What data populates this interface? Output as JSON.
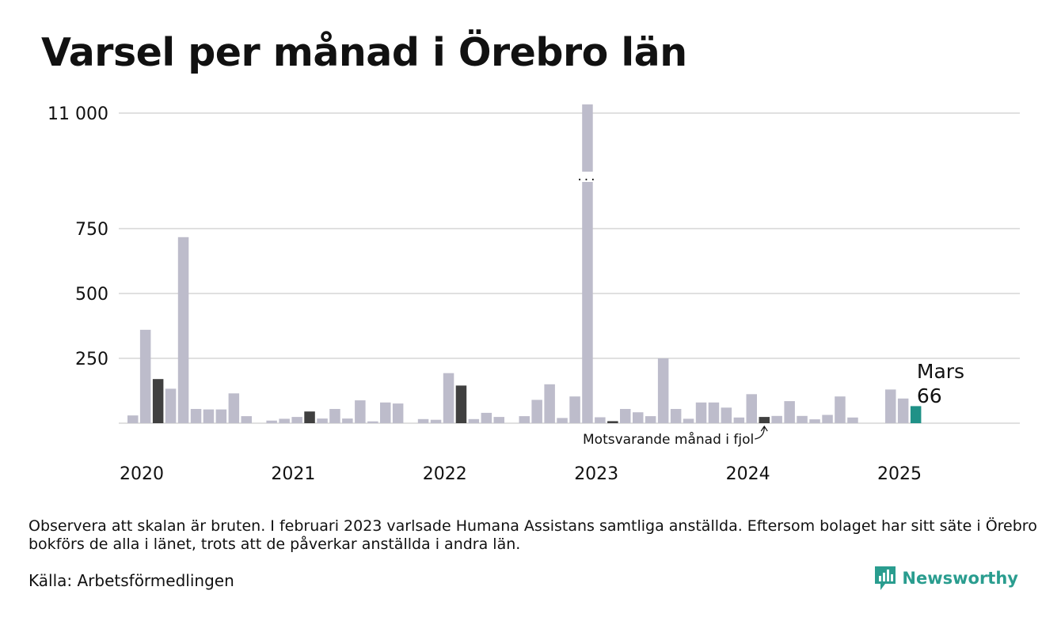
{
  "title": "Varsel per månad i Örebro län",
  "note": "Observera att skalan är bruten. I februari 2023 varlsade Humana Assistans samtliga anställda. Eftersom bolaget har sitt säte i Örebro bokförs de alla i länet, trots att de påverkar anställda i andra län.",
  "source": "Källa: Arbetsförmedlingen",
  "brand": {
    "name": "Newsworthy",
    "icon": "newsworthy-logo-icon"
  },
  "colors": {
    "bar": "#bdbccb",
    "highlight": "#404040",
    "current": "#1f9187",
    "grid": "#e0e0e0",
    "brand": "#2a9d8f"
  },
  "chart_data": {
    "type": "bar",
    "title": "Varsel per månad i Örebro län",
    "broken_axis": true,
    "y_ticks": [
      "250",
      "500",
      "750",
      "11 000"
    ],
    "y_tick_values": [
      250,
      500,
      750,
      11000
    ],
    "x_tick_labels": [
      "2020",
      "2021",
      "2022",
      "2023",
      "2024",
      "2025"
    ],
    "start": "2020-01",
    "values": [
      30,
      360,
      170,
      133,
      717,
      55,
      53,
      53,
      115,
      27,
      0,
      10,
      17,
      24,
      45,
      18,
      55,
      18,
      88,
      7,
      80,
      76,
      0,
      16,
      13,
      193,
      145,
      16,
      40,
      24,
      0,
      27,
      90,
      150,
      20,
      103,
      11000,
      23,
      8,
      55,
      42,
      27,
      250,
      55,
      17,
      80,
      80,
      60,
      22,
      112,
      24,
      28,
      85,
      28,
      15,
      32,
      103,
      22,
      0,
      0,
      130,
      95,
      66
    ],
    "highlight_months": [
      "2020-03",
      "2021-03",
      "2022-03",
      "2023-03",
      "2024-03"
    ],
    "current": {
      "month": "2025-03",
      "label": "Mars",
      "value_label": "66"
    },
    "annotation": "Motsvarande månad i fjol",
    "break_marker": "..."
  }
}
